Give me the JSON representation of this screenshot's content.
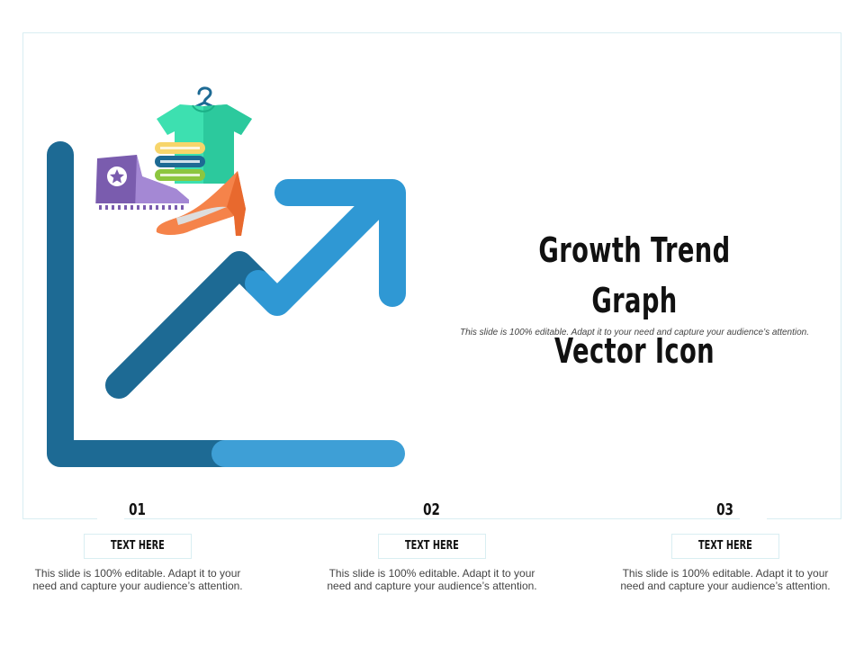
{
  "slide": {
    "title_line1": "Growth Trend Graph",
    "title_line2": "Vector Icon",
    "subtitle": "This slide is 100% editable. Adapt it to your need and capture your audience’s attention."
  },
  "steps": [
    {
      "number": "01",
      "label": "TEXT HERE",
      "description": "This slide is 100% editable. Adapt it to your need and capture your audience’s attention."
    },
    {
      "number": "02",
      "label": "TEXT HERE",
      "description": "This slide is 100% editable. Adapt it to your need and capture your audience’s attention."
    },
    {
      "number": "03",
      "label": "TEXT HERE",
      "description": "This slide is 100% editable. Adapt it to your need and capture your audience’s attention."
    }
  ],
  "colors": {
    "axis_dark": "#1d6a94",
    "axis_light": "#3e9fd6",
    "arrow_light": "#2f98d4",
    "shirt": "#3de0b0",
    "sneaker": "#7a5cae",
    "heel": "#f5834a"
  },
  "icons": [
    "growth-chart-icon",
    "t-shirt-icon",
    "hanger-icon",
    "folded-clothes-icon",
    "sneaker-icon",
    "high-heel-icon"
  ]
}
